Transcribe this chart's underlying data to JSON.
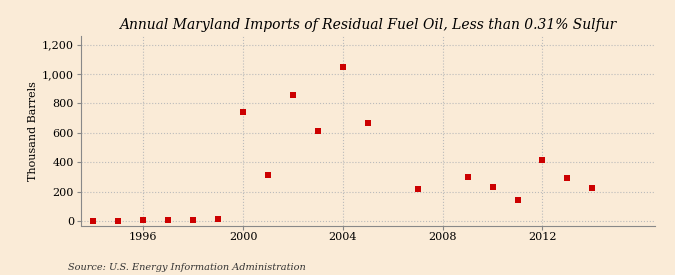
{
  "title": "Annual Maryland Imports of Residual Fuel Oil, Less than 0.31% Sulfur",
  "ylabel": "Thousand Barrels",
  "source_text": "Source: U.S. Energy Information Administration",
  "background_color": "#faebd7",
  "plot_bg_color": "#faebd7",
  "marker_color": "#cc0000",
  "marker_size": 14,
  "xlim": [
    1993.5,
    2016.5
  ],
  "ylim": [
    -30,
    1260
  ],
  "yticks": [
    0,
    200,
    400,
    600,
    800,
    1000,
    1200
  ],
  "ytick_labels": [
    "0",
    "200",
    "400",
    "600",
    "800",
    "1,000",
    "1,200"
  ],
  "xticks": [
    1996,
    2000,
    2004,
    2008,
    2012
  ],
  "data": {
    "years": [
      1994,
      1995,
      1996,
      1997,
      1998,
      1999,
      2000,
      2001,
      2002,
      2003,
      2004,
      2005,
      2007,
      2009,
      2010,
      2011,
      2012,
      2013,
      2014
    ],
    "values": [
      2,
      3,
      5,
      6,
      5,
      15,
      745,
      315,
      855,
      610,
      1050,
      665,
      215,
      300,
      230,
      140,
      415,
      290,
      225
    ]
  },
  "grid_color": "#bbbbbb",
  "grid_linestyle": ":",
  "title_fontsize": 10,
  "label_fontsize": 8,
  "tick_fontsize": 8,
  "source_fontsize": 7
}
